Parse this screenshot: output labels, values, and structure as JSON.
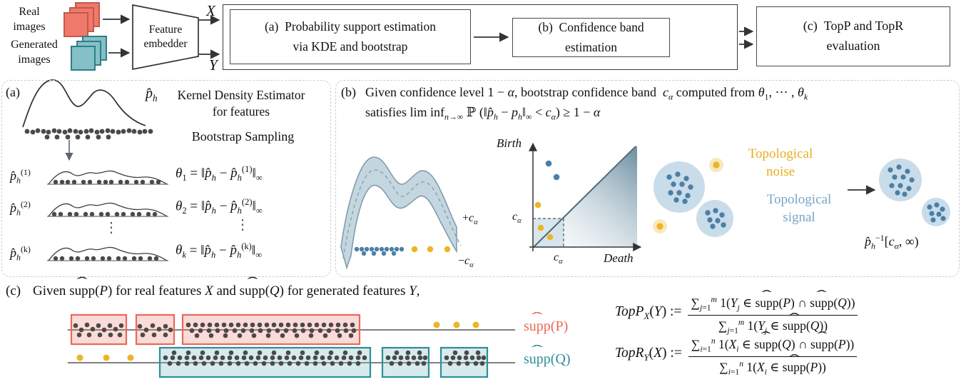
{
  "palette": {
    "coral": "#F0796B",
    "coral-dark": "#C25A4B",
    "coral-box": "#E8695A",
    "teal": "#85C0C7",
    "teal-dark": "#2F7D88",
    "teal-box": "#2F8D99",
    "gold": "#EDB425",
    "gold-halo": "#F8E9BC",
    "gold-text": "#E9AF1C",
    "blue-dot": "#4C7FA6",
    "blue-text": "#79A5C6",
    "blob": "#C9DCEA",
    "band": "#BED1DB",
    "band-edge": "#7E99A7",
    "ink": "#333333",
    "gray-dot": "#4A4A4A",
    "dash": "#C9CED6"
  },
  "pipeline": {
    "real_images_label": "Real\nimages",
    "generated_images_label": "Generated\nimages",
    "feature_embedder_label": "Feature\nembedder",
    "x_symbol": "X",
    "y_symbol": "Y",
    "box_a_label": "(a) Probability support estimation\nvia KDE and bootstrap",
    "box_b_label": "(b) Confidence band\nestimation",
    "box_c_label": "(c) TopP and TopR\nevaluation"
  },
  "panel_a": {
    "tag": "(a)",
    "p_hat_html": "<i>p̂<sub>h</sub></i>",
    "kde_caption": "Kernel Density Estimator\nfor features",
    "bootstrap_caption": "Bootstrap Sampling",
    "rows": [
      {
        "label_html": "<i>p̂<sub>h</sub></i><sup>(1)</sup>",
        "equation_html": "<i>θ</i><sub>1</sub> = ‖<i>p̂<sub>h</sub></i> − <i>p̂<sub>h</sub></i><sup>(1)</sup>‖<sub>∞</sub>"
      },
      {
        "label_html": "<i>p̂<sub>h</sub></i><sup>(2)</sup>",
        "equation_html": "<i>θ</i><sub>2</sub> = ‖<i>p̂<sub>h</sub></i> − <i>p̂<sub>h</sub></i><sup>(2)</sup>‖<sub>∞</sub>"
      },
      {
        "label_html": "<i>p̂<sub>h</sub></i><sup>(k)</sup>",
        "equation_html": "<i>θ<sub>k</sub></i> = ‖<i>p̂<sub>h</sub></i> − <i>p̂<sub>h</sub></i><sup>(k)</sup>‖<sub>∞</sub>"
      }
    ],
    "vdots": "⋮"
  },
  "panel_b": {
    "tag": "(b)",
    "line1_html": "Given confidence level 1 − <i>α</i>, bootstrap confidence band&nbsp; <i>c<sub>α</sub></i> computed from <i>θ</i><sub>1</sub>, ⋯ , <i>θ<sub>k</sub></i>",
    "line2_html": "satisfies lim inf<sub><i>n</i>→∞</sub> ℙ (‖<i>p̂<sub>h</sub></i> − <i>p<sub>h</sub></i>‖<sub>∞</sub> &lt; <i>c<sub>α</sub></i>) ≥ 1 − <i>α</i>",
    "plus_c_alpha_html": "+<i>c<sub>α</sub></i>",
    "minus_c_alpha_html": "−<i>c<sub>α</sub></i>",
    "birth_label": "Birth",
    "death_label": "Death",
    "c_alpha_y_html": "<i>c<sub>α</sub></i>",
    "c_alpha_x_html": "<i>c<sub>α</sub></i>",
    "noise_label": "Topological\nnoise",
    "signal_label": "Topological\nsignal",
    "result_label_html": "<i>p̂<sub>h</sub></i><sup>−1</sup>[<i>c<sub>α</sub></i>, ∞)"
  },
  "panel_c": {
    "tag": "(c)",
    "intro_html": "Given <span class=\"hat\">supp</span>(<i>P</i>) for real features <i>X</i> and <span class=\"hat\">supp</span>(<i>Q</i>) for generated features <i>Y</i>,",
    "supp_p_html": "<span class=\"hat\">supp</span>(P)",
    "supp_q_html": "<span class=\"hat\">supp</span>(Q)",
    "topp": {
      "lhs_html": "<i>TopP</i><sub><i>X</i></sub>(<i>Y</i>) :=",
      "num_html": "∑<sub><i>j</i>=1</sub><sup><i>m</i></sup> 1(<i>Y<sub>j</sub></i> ∈ <span class=\"hat\">supp</span>(<i>P</i>) ∩ <span class=\"hat\">supp</span>(<i>Q</i>))",
      "den_html": "∑<sub><i>j</i>=1</sub><sup><i>m</i></sup> 1(<i>Y<sub>j</sub></i> ∈ <span class=\"hat\">supp</span>(<i>Q</i>))"
    },
    "topr": {
      "lhs_html": "<i>TopR</i><sub><i>Y</i></sub>(<i>X</i>) :=",
      "num_html": "∑<sub><i>i</i>=1</sub><sup><i>n</i></sup> 1(<i>X<sub>i</sub></i> ∈ <span class=\"hat\">supp</span>(<i>Q</i>) ∩ <span class=\"hat\">supp</span>(<i>P</i>))",
      "den_html": "∑<sub><i>i</i>=1</sub><sup><i>n</i></sup> 1(<i>X<sub>i</sub></i> ∈ <span class=\"hat\">supp</span>(<i>P</i>))"
    }
  }
}
